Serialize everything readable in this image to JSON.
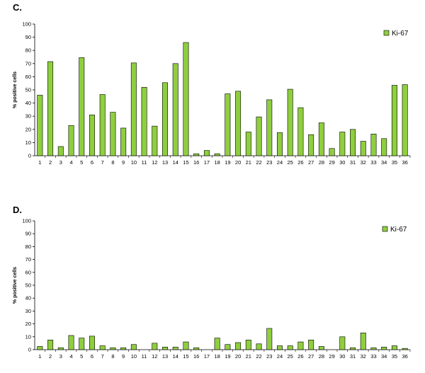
{
  "chart_data": [
    {
      "type": "bar",
      "panel_label": "C.",
      "ylabel": "% positive cells",
      "ylim": [
        0,
        100
      ],
      "yticks": [
        0,
        10,
        20,
        30,
        40,
        50,
        60,
        70,
        80,
        90,
        100
      ],
      "legend": "top-right",
      "categories": [
        "1",
        "2",
        "3",
        "4",
        "5",
        "6",
        "7",
        "8",
        "9",
        "10",
        "11",
        "12",
        "13",
        "14",
        "15",
        "16",
        "17",
        "18",
        "19",
        "20",
        "21",
        "22",
        "23",
        "24",
        "25",
        "26",
        "27",
        "28",
        "29",
        "30",
        "31",
        "32",
        "33",
        "34",
        "35",
        "36"
      ],
      "series": [
        {
          "name": "Ki-67",
          "color": "#8fce3f",
          "values": [
            46,
            71.5,
            7,
            23,
            74.5,
            31,
            46.5,
            33,
            21,
            70.5,
            52,
            22.5,
            55.5,
            70,
            86,
            1.5,
            4,
            1.5,
            47,
            49,
            18,
            29.5,
            42.5,
            17.5,
            50.5,
            36.5,
            16,
            25,
            5.5,
            18,
            20,
            11,
            16.5,
            13,
            53.5,
            54
          ]
        }
      ]
    },
    {
      "type": "bar",
      "panel_label": "D.",
      "ylabel": "% positive cells",
      "ylim": [
        0,
        100
      ],
      "yticks": [
        0,
        10,
        20,
        30,
        40,
        50,
        60,
        70,
        80,
        90,
        100
      ],
      "legend": "top-right",
      "categories": [
        "1",
        "2",
        "3",
        "4",
        "5",
        "6",
        "7",
        "8",
        "9",
        "10",
        "11",
        "12",
        "13",
        "14",
        "15",
        "16",
        "17",
        "18",
        "19",
        "20",
        "21",
        "22",
        "23",
        "24",
        "25",
        "26",
        "27",
        "28",
        "29",
        "30",
        "31",
        "32",
        "33",
        "34",
        "35",
        "36"
      ],
      "series": [
        {
          "name": "Ki-67",
          "color": "#8fce3f",
          "values": [
            2.5,
            7.5,
            1.5,
            11,
            9,
            10.5,
            3,
            1.5,
            1.5,
            4,
            0,
            5,
            2,
            2,
            6,
            1.5,
            0,
            9,
            4,
            5.5,
            7.5,
            4.5,
            16.5,
            3,
            3,
            6,
            7.5,
            2.5,
            0,
            10,
            1.5,
            13,
            1.5,
            2,
            3,
            1
          ]
        }
      ]
    }
  ]
}
